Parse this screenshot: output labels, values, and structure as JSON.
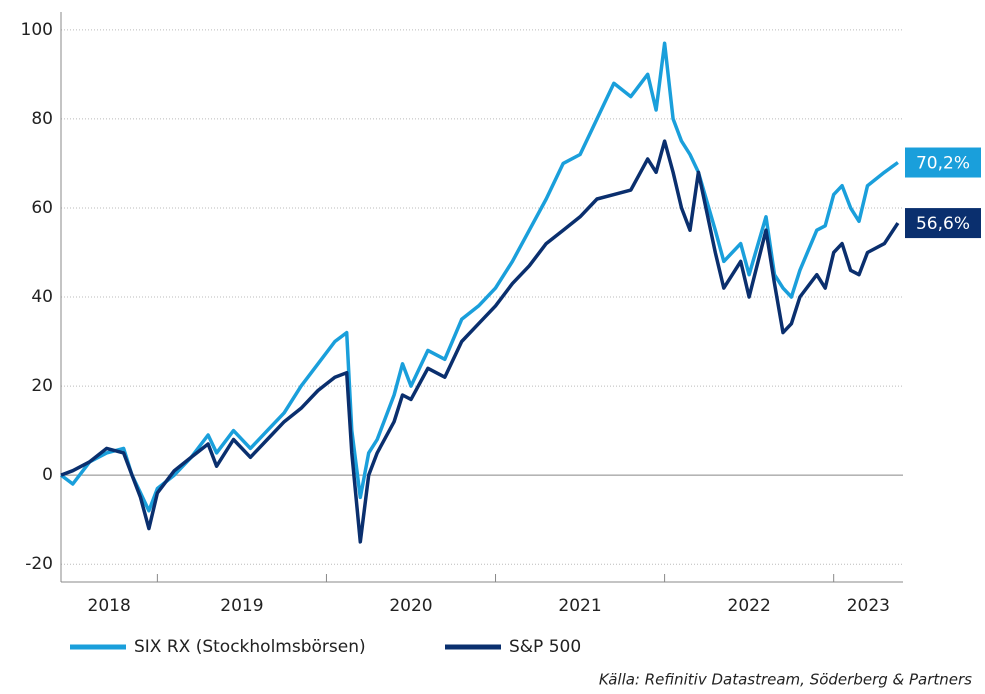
{
  "chart_data": {
    "type": "line",
    "x": [
      2018.43,
      2018.5,
      2018.6,
      2018.7,
      2018.8,
      2018.85,
      2018.9,
      2018.95,
      2019.0,
      2019.1,
      2019.2,
      2019.3,
      2019.35,
      2019.45,
      2019.55,
      2019.65,
      2019.75,
      2019.85,
      2019.95,
      2020.05,
      2020.12,
      2020.15,
      2020.2,
      2020.25,
      2020.3,
      2020.4,
      2020.45,
      2020.5,
      2020.6,
      2020.7,
      2020.8,
      2020.9,
      2021.0,
      2021.1,
      2021.2,
      2021.3,
      2021.4,
      2021.5,
      2021.6,
      2021.7,
      2021.8,
      2021.9,
      2021.95,
      2022.0,
      2022.05,
      2022.1,
      2022.15,
      2022.2,
      2022.3,
      2022.35,
      2022.45,
      2022.5,
      2022.6,
      2022.65,
      2022.7,
      2022.75,
      2022.8,
      2022.9,
      2022.95,
      2023.0,
      2023.05,
      2023.1,
      2023.15,
      2023.2,
      2023.3,
      2023.38
    ],
    "series": [
      {
        "name": "SIX RX (Stockholmsbörsen)",
        "color": "#1a9fdb",
        "end_label": "70,2%",
        "values": [
          0,
          -2,
          3,
          5,
          6,
          0,
          -4,
          -8,
          -3,
          0,
          4,
          9,
          5,
          10,
          6,
          10,
          14,
          20,
          25,
          30,
          32,
          10,
          -5,
          5,
          8,
          18,
          25,
          20,
          28,
          26,
          35,
          38,
          42,
          48,
          55,
          62,
          70,
          72,
          80,
          88,
          85,
          90,
          82,
          97,
          80,
          75,
          72,
          68,
          55,
          48,
          52,
          45,
          58,
          45,
          42,
          40,
          46,
          55,
          56,
          63,
          65,
          60,
          57,
          65,
          68,
          70.2
        ]
      },
      {
        "name": "S&P 500",
        "color": "#0a2f6e",
        "end_label": "56,6%",
        "values": [
          0,
          1,
          3,
          6,
          5,
          0,
          -5,
          -12,
          -4,
          1,
          4,
          7,
          2,
          8,
          4,
          8,
          12,
          15,
          19,
          22,
          23,
          5,
          -15,
          0,
          5,
          12,
          18,
          17,
          24,
          22,
          30,
          34,
          38,
          43,
          47,
          52,
          55,
          58,
          62,
          63,
          64,
          71,
          68,
          75,
          68,
          60,
          55,
          68,
          50,
          42,
          48,
          40,
          55,
          43,
          32,
          34,
          40,
          45,
          42,
          50,
          52,
          46,
          45,
          50,
          52,
          56.6
        ]
      }
    ],
    "xlim": [
      2018.43,
      2023.41
    ],
    "xticks": [
      2018,
      2019,
      2020,
      2021,
      2022,
      2023
    ],
    "ylim": [
      -24,
      104
    ],
    "yticks": [
      -20,
      0,
      20,
      40,
      60,
      80,
      100
    ],
    "grid": true,
    "source": "Källa: Refinitiv Datastream, Söderberg & Partners"
  }
}
